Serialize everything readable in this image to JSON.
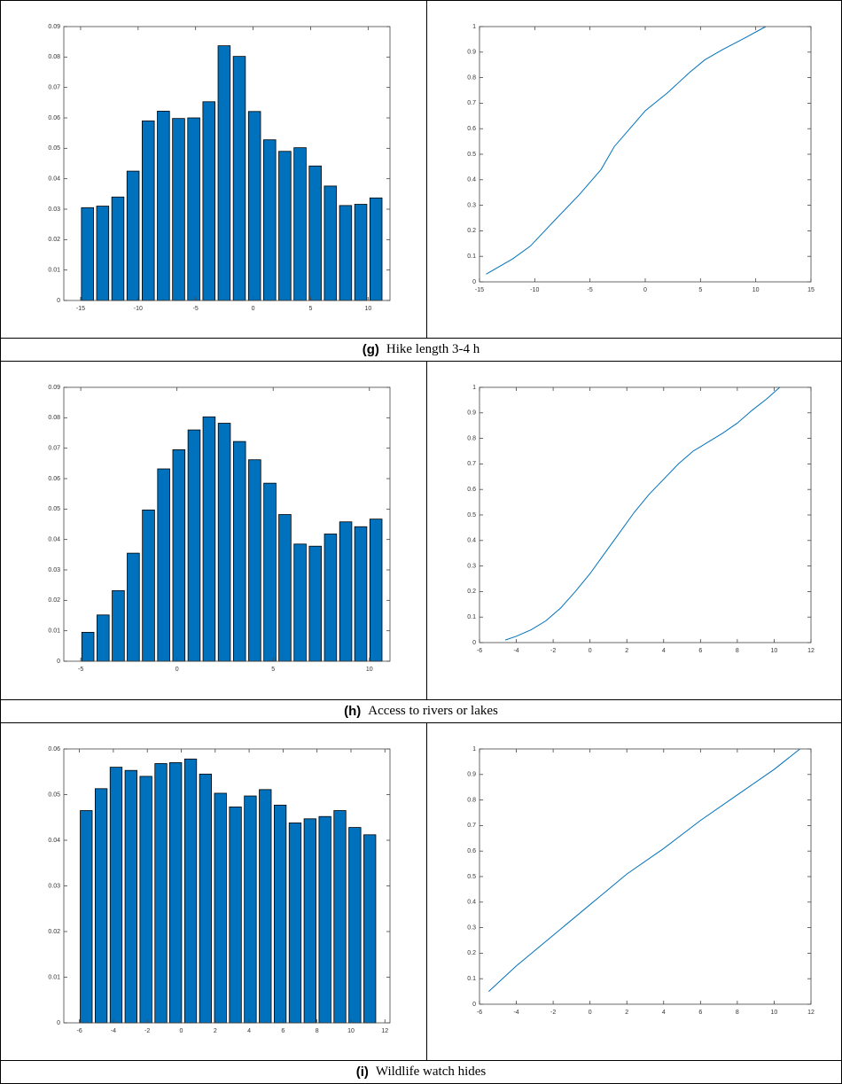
{
  "chart_data": [
    {
      "type": "bar",
      "x": [
        -14.4,
        -13.08,
        -11.76,
        -10.44,
        -9.12,
        -7.8,
        -6.48,
        -5.16,
        -3.84,
        -2.52,
        -1.2,
        0.12,
        1.44,
        2.76,
        4.08,
        5.4,
        6.72,
        8.04,
        9.36,
        10.68
      ],
      "values": [
        0.0305,
        0.031,
        0.034,
        0.0425,
        0.059,
        0.0622,
        0.0598,
        0.06,
        0.0653,
        0.0837,
        0.0802,
        0.0621,
        0.0528,
        0.049,
        0.0502,
        0.0442,
        0.0376,
        0.0312,
        0.0316,
        0.0337
      ],
      "color": "#0072bd",
      "xlim": [
        -16.46,
        11.9
      ],
      "xticks": [
        -15,
        -10,
        -5,
        0,
        5,
        10
      ],
      "ylim": [
        0,
        0.09
      ],
      "yticks": [
        0,
        0.01,
        0.02,
        0.03,
        0.04,
        0.05,
        0.06,
        0.07,
        0.08,
        0.09
      ]
    },
    {
      "type": "line",
      "x": [
        -14.4,
        -12,
        -10.4,
        -8,
        -6,
        -4,
        -2.8,
        -1.2,
        0,
        2,
        4,
        5.4,
        7,
        9,
        10.9
      ],
      "values": [
        0.03,
        0.09,
        0.14,
        0.25,
        0.34,
        0.44,
        0.53,
        0.61,
        0.67,
        0.74,
        0.82,
        0.87,
        0.91,
        0.955,
        1.0
      ],
      "color": "#0072bd",
      "xlim": [
        -15,
        15
      ],
      "xticks": [
        -15,
        -10,
        -5,
        0,
        5,
        10,
        15
      ],
      "ylim": [
        0,
        1
      ],
      "yticks": [
        0,
        0.1,
        0.2,
        0.3,
        0.4,
        0.5,
        0.6,
        0.7,
        0.8,
        0.9,
        1
      ]
    },
    {
      "type": "bar",
      "x": [
        -4.63,
        -3.84,
        -3.05,
        -2.27,
        -1.48,
        -0.69,
        0.1,
        0.89,
        1.67,
        2.46,
        3.25,
        4.04,
        4.83,
        5.61,
        6.4,
        7.19,
        7.98,
        8.77,
        9.55,
        10.34
      ],
      "values": [
        0.0095,
        0.0152,
        0.0232,
        0.0355,
        0.0497,
        0.0632,
        0.0695,
        0.076,
        0.0803,
        0.0782,
        0.0722,
        0.0662,
        0.0585,
        0.0482,
        0.0385,
        0.0378,
        0.0418,
        0.0458,
        0.0442,
        0.0467
      ],
      "color": "#0072bd",
      "xlim": [
        -5.88,
        11.07
      ],
      "xticks": [
        -5,
        0,
        5,
        10
      ],
      "ylim": [
        0,
        0.09
      ],
      "yticks": [
        0,
        0.01,
        0.02,
        0.03,
        0.04,
        0.05,
        0.06,
        0.07,
        0.08,
        0.09
      ]
    },
    {
      "type": "line",
      "x": [
        -4.6,
        -4,
        -3.2,
        -2.4,
        -1.6,
        -0.8,
        0,
        0.8,
        1.6,
        2.4,
        3.2,
        4,
        4.8,
        5.6,
        6.4,
        7.2,
        8,
        8.8,
        9.6,
        10.3
      ],
      "values": [
        0.01,
        0.025,
        0.05,
        0.085,
        0.135,
        0.2,
        0.27,
        0.35,
        0.43,
        0.51,
        0.58,
        0.64,
        0.7,
        0.75,
        0.785,
        0.82,
        0.86,
        0.91,
        0.955,
        1.0
      ],
      "color": "#0072bd",
      "xlim": [
        -6,
        12
      ],
      "xticks": [
        -6,
        -4,
        -2,
        0,
        2,
        4,
        6,
        8,
        10,
        12
      ],
      "ylim": [
        0,
        1
      ],
      "yticks": [
        0,
        0.1,
        0.2,
        0.3,
        0.4,
        0.5,
        0.6,
        0.7,
        0.8,
        0.9,
        1
      ]
    },
    {
      "type": "bar",
      "x": [
        -5.6,
        -4.72,
        -3.84,
        -2.96,
        -2.08,
        -1.2,
        -0.33,
        0.55,
        1.43,
        2.31,
        3.19,
        4.07,
        4.95,
        5.83,
        6.71,
        7.59,
        8.47,
        9.35,
        10.23,
        11.11
      ],
      "values": [
        0.0465,
        0.0513,
        0.056,
        0.0553,
        0.054,
        0.0568,
        0.057,
        0.0578,
        0.0545,
        0.0503,
        0.0473,
        0.0497,
        0.0511,
        0.0477,
        0.0438,
        0.0447,
        0.0452,
        0.0465,
        0.0428,
        0.0412
      ],
      "color": "#0072bd",
      "xlim": [
        -6.92,
        12.3
      ],
      "xticks": [
        -6,
        -4,
        -2,
        0,
        2,
        4,
        6,
        8,
        10,
        12
      ],
      "ylim": [
        0,
        0.06
      ],
      "yticks": [
        0,
        0.01,
        0.02,
        0.03,
        0.04,
        0.05,
        0.06
      ]
    },
    {
      "type": "line",
      "x": [
        -5.5,
        -4,
        -2,
        0,
        2,
        4,
        6,
        8,
        10,
        11.4
      ],
      "values": [
        0.05,
        0.15,
        0.27,
        0.39,
        0.51,
        0.61,
        0.72,
        0.82,
        0.92,
        1.0
      ],
      "color": "#0072bd",
      "xlim": [
        -6,
        12
      ],
      "xticks": [
        -6,
        -4,
        -2,
        0,
        2,
        4,
        6,
        8,
        10,
        12
      ],
      "ylim": [
        0,
        1
      ],
      "yticks": [
        0,
        0.1,
        0.2,
        0.3,
        0.4,
        0.5,
        0.6,
        0.7,
        0.8,
        0.9,
        1
      ]
    }
  ],
  "captions": [
    {
      "label": "(g)",
      "text": "Hike length 3-4 h"
    },
    {
      "label": "(h)",
      "text": "Access to rivers or lakes"
    },
    {
      "label": "(i)",
      "text": "Wildlife watch hides"
    }
  ]
}
